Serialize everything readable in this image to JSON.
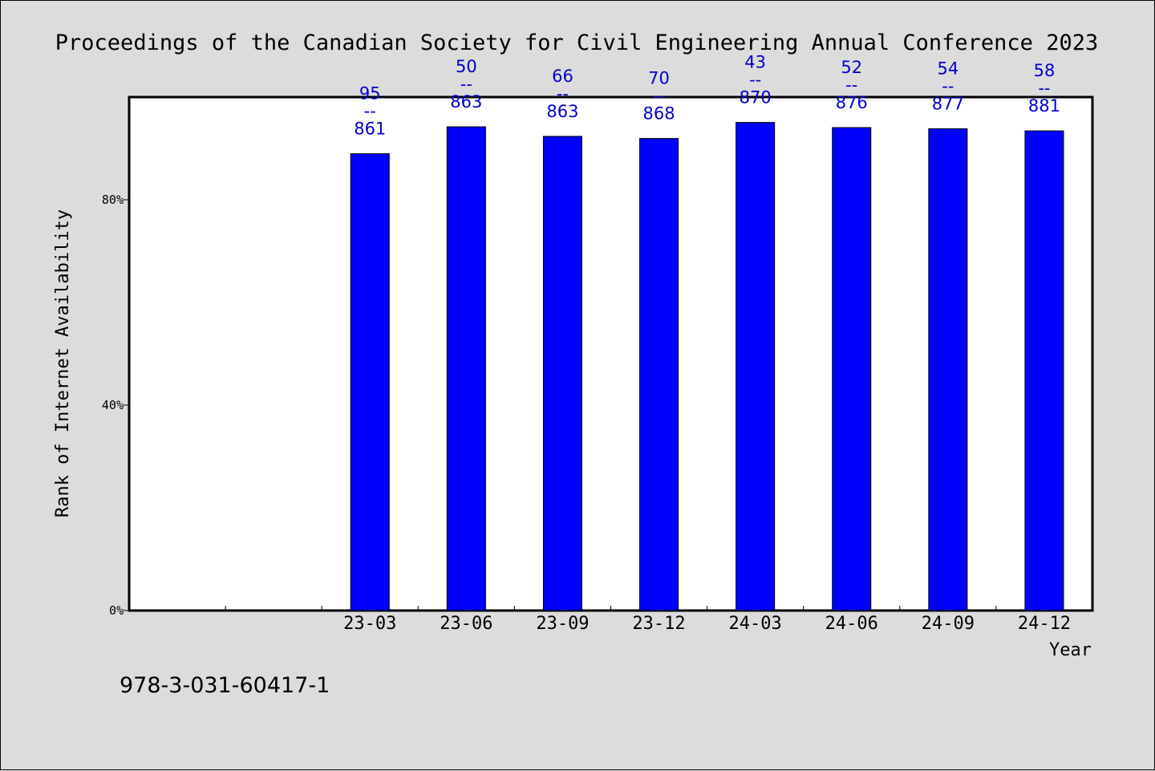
{
  "chart_data": {
    "type": "bar",
    "title": "Proceedings of the Canadian Society for Civil Engineering Annual Conference 2023",
    "xlabel": "Year",
    "ylabel": "Rank of Internet Availability",
    "categories": [
      "",
      "",
      "23-03",
      "23-06",
      "23-09",
      "23-12",
      "24-03",
      "24-06",
      "24-09",
      "24-12"
    ],
    "series": [
      {
        "values": [
          null,
          null,
          88.97,
          94.21,
          92.35,
          91.94,
          95.06,
          94.06,
          93.84,
          93.42
        ],
        "labels": [
          null,
          null,
          {
            "top": "95",
            "sep": "--",
            "bottom": "861"
          },
          {
            "top": "50",
            "sep": "--",
            "bottom": "863"
          },
          {
            "top": "66",
            "sep": "--",
            "bottom": "863"
          },
          {
            "top": "70",
            "sep": "--",
            "bottom": "868"
          },
          {
            "top": "43",
            "sep": "--",
            "bottom": "870"
          },
          {
            "top": "52",
            "sep": "--",
            "bottom": "876"
          },
          {
            "top": "54",
            "sep": "--",
            "bottom": "877"
          },
          {
            "top": "58",
            "sep": "--",
            "bottom": "881"
          }
        ]
      }
    ],
    "ylim": [
      0,
      100
    ],
    "yticks": [
      0,
      40,
      80
    ],
    "ytick_labels": [
      "0%",
      "40%",
      "80%"
    ],
    "grid": false,
    "colors": {
      "bar": "#0000ff",
      "label": "#0000cc",
      "background": "#dcdcdc",
      "plot_background": "#ffffff"
    }
  },
  "footer_text": "978-3-031-60417-1"
}
